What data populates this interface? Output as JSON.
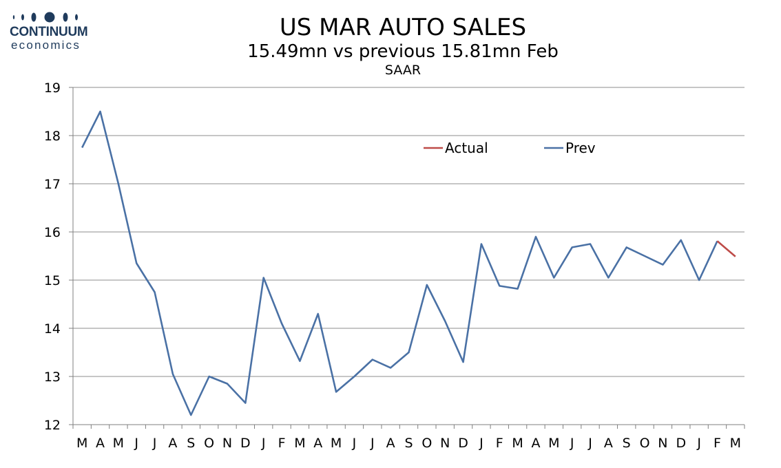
{
  "logo": {
    "name": "CONTINUUM",
    "sub": "economics",
    "color": "#1f3b5c"
  },
  "chart_data": {
    "type": "line",
    "title": "US MAR AUTO SALES",
    "subtitle": "15.49mn vs previous 15.81mn Feb",
    "unit": "SAAR",
    "categories": [
      "M",
      "A",
      "M",
      "J",
      "J",
      "A",
      "S",
      "O",
      "N",
      "D",
      "J",
      "F",
      "M",
      "A",
      "M",
      "J",
      "J",
      "A",
      "S",
      "O",
      "N",
      "D",
      "J",
      "F",
      "M",
      "A",
      "M",
      "J",
      "J",
      "A",
      "S",
      "O",
      "N",
      "D",
      "J",
      "F",
      "M"
    ],
    "ylim": [
      12,
      19
    ],
    "yticks": [
      12,
      13,
      14,
      15,
      16,
      17,
      18,
      19
    ],
    "grid": true,
    "legend_position": "top-right",
    "series": [
      {
        "name": "Actual",
        "color": "#be4b48",
        "values": [
          null,
          null,
          null,
          null,
          null,
          null,
          null,
          null,
          null,
          null,
          null,
          null,
          null,
          null,
          null,
          null,
          null,
          null,
          null,
          null,
          null,
          null,
          null,
          null,
          null,
          null,
          null,
          null,
          null,
          null,
          null,
          null,
          null,
          null,
          null,
          15.81,
          15.49
        ]
      },
      {
        "name": "Prev",
        "color": "#4a71a5",
        "values": [
          17.75,
          18.5,
          17.0,
          15.35,
          14.75,
          13.05,
          12.2,
          13.0,
          12.85,
          12.45,
          15.05,
          14.1,
          13.32,
          14.3,
          12.68,
          13.0,
          13.35,
          13.18,
          13.5,
          14.9,
          14.15,
          13.3,
          15.75,
          14.88,
          14.82,
          15.9,
          15.05,
          15.68,
          15.75,
          15.05,
          15.68,
          15.5,
          15.32,
          15.83,
          15.0,
          15.81,
          null
        ]
      }
    ]
  }
}
